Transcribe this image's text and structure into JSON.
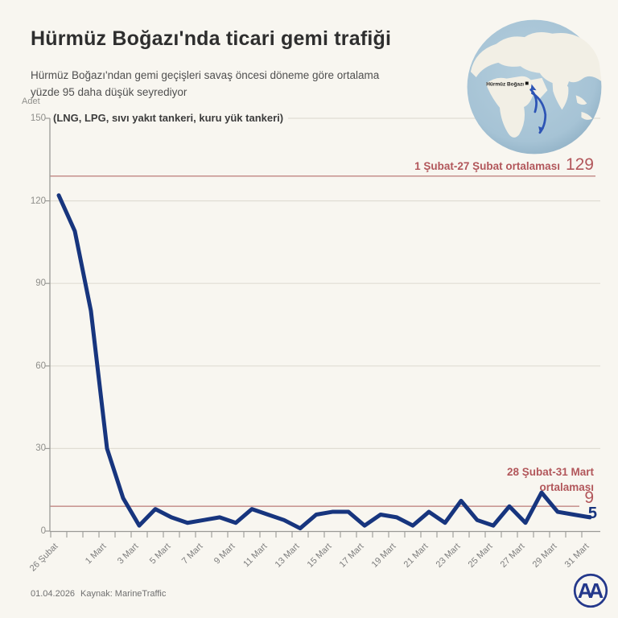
{
  "header": {
    "title": "Hürmüz Boğazı'nda ticari gemi trafiği",
    "subtitle_line1": "Hürmüz Boğazı'ndan gemi geçişleri savaş öncesi döneme göre ortalama",
    "subtitle_line2": "yüzde 95 daha düşük seyrediyor"
  },
  "globe": {
    "label": "Hürmüz Boğazı"
  },
  "chart_data": {
    "type": "line",
    "ylabel": "Adet",
    "note": "(LNG, LPG, sıvı yakıt tankeri, kuru yük tankeri)",
    "ylim": [
      0,
      150
    ],
    "yticks": [
      0,
      30,
      60,
      90,
      120,
      150
    ],
    "categories": [
      "26 Şubat",
      "27 Şubat",
      "28 Şubat",
      "1 Mart",
      "2 Mart",
      "3 Mart",
      "4 Mart",
      "5 Mart",
      "6 Mart",
      "7 Mart",
      "8 Mart",
      "9 Mart",
      "10 Mart",
      "11 Mart",
      "12 Mart",
      "13 Mart",
      "14 Mart",
      "15 Mart",
      "16 Mart",
      "17 Mart",
      "18 Mart",
      "19 Mart",
      "20 Mart",
      "21 Mart",
      "22 Mart",
      "23 Mart",
      "24 Mart",
      "25 Mart",
      "26 Mart",
      "27 Mart",
      "28 Mart",
      "29 Mart",
      "30 Mart",
      "31 Mart"
    ],
    "values": [
      122,
      109,
      80,
      30,
      12,
      2,
      8,
      5,
      3,
      4,
      5,
      3,
      8,
      6,
      4,
      1,
      6,
      7,
      7,
      2,
      6,
      5,
      2,
      7,
      3,
      11,
      4,
      2,
      9,
      3,
      14,
      7,
      6,
      5
    ],
    "x_tick_labels": [
      "26 Şubat",
      "1 Mart",
      "3 Mart",
      "5 Mart",
      "7 Mart",
      "9 Mart",
      "11 Mart",
      "13 Mart",
      "15 Mart",
      "17 Mart",
      "19 Mart",
      "21 Mart",
      "23 Mart",
      "25 Mart",
      "27 Mart",
      "29 Mart",
      "31 Mart"
    ],
    "line_color": "#17357e",
    "ref_line_color": "#c99793",
    "accent_red": "#b2575b",
    "reference_lines": [
      {
        "value": 129,
        "label": "1 Şubat-27 Şubat ortalaması",
        "value_label": "129"
      },
      {
        "value": 9,
        "label_line1": "28 Şubat-31 Mart",
        "label_line2": "ortalaması",
        "value_label": "9"
      }
    ],
    "last_value_label": "5",
    "grid": true,
    "legend": "none"
  },
  "footer": {
    "date": "01.04.2026",
    "source": "Kaynak: MarineTraffic"
  },
  "logo": {
    "monogram": "AA"
  }
}
